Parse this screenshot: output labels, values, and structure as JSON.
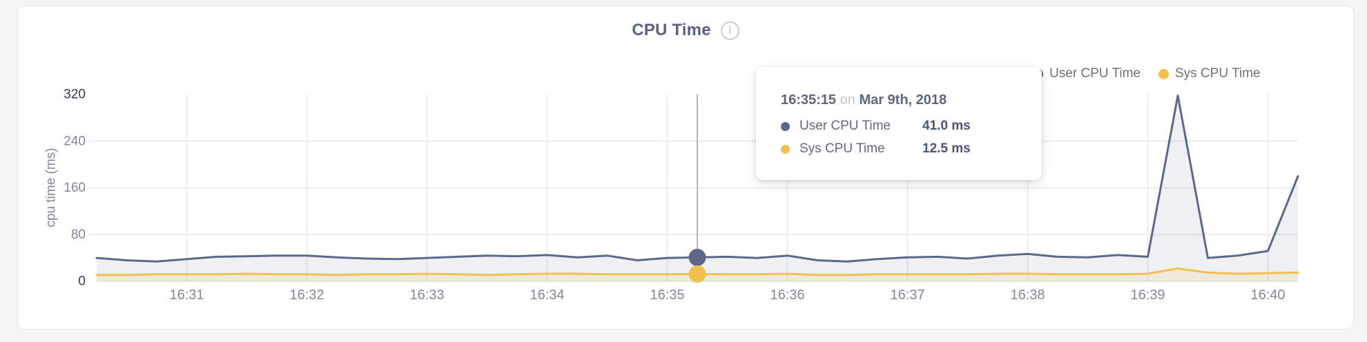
{
  "header": {
    "title": "CPU Time",
    "info_glyph": "i"
  },
  "legend": [
    {
      "label": "User CPU Time",
      "color": "#5b6886"
    },
    {
      "label": "Sys CPU Time",
      "color": "#efc14e"
    }
  ],
  "tooltip": {
    "time": "16:35:15",
    "on_word": "on",
    "date": "Mar 9th, 2018",
    "rows": [
      {
        "label": "User CPU Time",
        "value": "41.0 ms",
        "color": "#5b6886"
      },
      {
        "label": "Sys CPU Time",
        "value": "12.5 ms",
        "color": "#efc14e"
      }
    ]
  },
  "chart_data": {
    "type": "area",
    "title": "CPU Time",
    "xlabel": "",
    "ylabel": "cpu time (ms)",
    "ylim": [
      0,
      320
    ],
    "yticks": [
      0,
      80,
      160,
      240,
      320
    ],
    "ytick_edge_color": "#2b3c5e",
    "ytick_color": "#7e889b",
    "xtick_color": "#7e889b",
    "grid": true,
    "legend_position": "top-right",
    "xticks": [
      "16:31",
      "16:32",
      "16:33",
      "16:34",
      "16:35",
      "16:36",
      "16:37",
      "16:38",
      "16:39",
      "16:40"
    ],
    "x": [
      "16:30:15",
      "16:30:30",
      "16:30:45",
      "16:31:00",
      "16:31:15",
      "16:31:30",
      "16:31:45",
      "16:32:00",
      "16:32:15",
      "16:32:30",
      "16:32:45",
      "16:33:00",
      "16:33:15",
      "16:33:30",
      "16:33:45",
      "16:34:00",
      "16:34:15",
      "16:34:30",
      "16:34:45",
      "16:35:00",
      "16:35:15",
      "16:35:30",
      "16:35:45",
      "16:36:00",
      "16:36:15",
      "16:36:30",
      "16:36:45",
      "16:37:00",
      "16:37:15",
      "16:37:30",
      "16:37:45",
      "16:38:00",
      "16:38:15",
      "16:38:30",
      "16:38:45",
      "16:39:00",
      "16:39:15",
      "16:39:30",
      "16:39:45",
      "16:40:00",
      "16:40:15"
    ],
    "series": [
      {
        "name": "User CPU Time",
        "color": "#5b6886",
        "fill": "rgba(91,104,134,0.10)",
        "values": [
          40,
          36,
          34,
          38,
          42,
          43,
          44,
          44,
          41,
          39,
          38,
          40,
          42,
          44,
          43,
          45,
          41,
          44,
          36,
          40,
          41,
          42,
          40,
          44,
          36,
          34,
          38,
          41,
          42,
          39,
          44,
          47,
          42,
          41,
          45,
          42,
          318,
          40,
          44,
          52,
          180
        ]
      },
      {
        "name": "Sys CPU Time",
        "color": "#efc14e",
        "fill": "rgba(239,193,78,0.14)",
        "values": [
          11,
          11,
          12,
          12,
          12,
          13,
          12,
          12,
          11,
          12,
          12,
          13,
          12,
          11,
          12,
          13,
          13,
          12,
          12,
          12,
          12.5,
          12,
          12,
          13,
          11,
          11,
          12,
          12,
          12,
          12,
          13,
          13,
          12,
          12,
          12,
          13,
          22,
          15,
          13,
          14,
          15
        ]
      }
    ],
    "hover": {
      "time": "16:35:15",
      "values": [
        41.0,
        12.5
      ],
      "crosshair_color": "#b2b4b9"
    }
  }
}
